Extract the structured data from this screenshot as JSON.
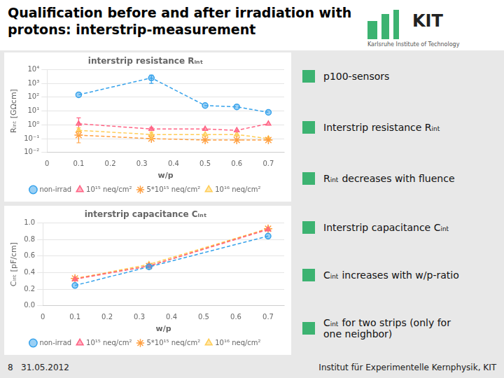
{
  "title": "Qualification before and after irradiation with\nprotons: interstrip-measurement",
  "annotations": [
    "KIT",
    "Karlsruhe Institute of Technology",
    "8   31.05.2012",
    "Institut für Experimentelle Kernphysik, KIT"
  ],
  "chart_data": [
    {
      "type": "line",
      "title": "interstrip resistance Rᵢₙₜ",
      "xlabel": "w/p",
      "ylabel": "Rᵢₙₜ [GΩcm]",
      "log": "y",
      "grid": "y",
      "legend": "bottom",
      "x": [
        0.1,
        0.33,
        0.5,
        0.6,
        0.7
      ],
      "xlim": [
        0,
        0.75
      ],
      "xticks": [
        0,
        0.1,
        0.2,
        0.3,
        0.4,
        0.5,
        0.6,
        0.7
      ],
      "ylim": [
        0.01,
        10000
      ],
      "yticks": [
        {
          "value": 0.01,
          "label": "10⁻²"
        },
        {
          "value": 0.1,
          "label": "10⁻¹"
        },
        {
          "value": 1,
          "label": "10⁰"
        },
        {
          "value": 10,
          "label": "10¹"
        },
        {
          "value": 100,
          "label": "10²"
        },
        {
          "value": 1000,
          "label": "10³"
        },
        {
          "value": 10000,
          "label": "10⁴"
        }
      ],
      "series": [
        {
          "name": "non-irrad",
          "marker": "circle",
          "line_style": "dashed",
          "values": [
            150,
            2500,
            25,
            20,
            8
          ],
          "yerr_lo": [
            0,
            1500,
            0,
            0,
            0
          ],
          "yerr_hi": [
            0,
            1500,
            0,
            0,
            0
          ]
        },
        {
          "name": "10¹⁵ neq/cm²",
          "marker": "triangle",
          "line_style": "dashed",
          "values": [
            1.2,
            0.5,
            0.5,
            0.4,
            1.2
          ],
          "yerr_lo": [
            1.0,
            0,
            0,
            0,
            0
          ],
          "yerr_hi": [
            2.0,
            0.15,
            0,
            0,
            0
          ]
        },
        {
          "name": "5*10¹⁵ neq/cm²",
          "marker": "star",
          "line_style": "dashed",
          "values": [
            0.18,
            0.1,
            0.08,
            0.08,
            0.08
          ],
          "yerr_lo": [
            0.13,
            0,
            0,
            0,
            0
          ],
          "yerr_hi": [
            0.13,
            0,
            0,
            0,
            0
          ]
        },
        {
          "name": "10¹⁶ neq/cm²",
          "marker": "triangle",
          "line_style": "dashed",
          "values": [
            0.4,
            0.2,
            0.2,
            0.2,
            0.1
          ],
          "yerr_lo": [
            0.2,
            0.1,
            0,
            0,
            0
          ],
          "yerr_hi": [
            0.2,
            0.1,
            0,
            0,
            0
          ]
        }
      ],
      "annotations": [
        "p100-sensors",
        "Interstrip resistance Rᵢₙₜ",
        "Rᵢₙₜ decreases with fluence"
      ]
    },
    {
      "type": "line",
      "title": "interstrip capacitance Cᵢₙₜ",
      "xlabel": "w/p",
      "ylabel": "Cᵢₙₜ [pF/cm]",
      "grid": "y",
      "legend": "bottom",
      "x": [
        0.1,
        0.33,
        0.7
      ],
      "xlim": [
        0,
        0.75
      ],
      "xticks": [
        0,
        0.1,
        0.2,
        0.3,
        0.4,
        0.5,
        0.6,
        0.7
      ],
      "ylim": [
        0.0,
        1.0
      ],
      "yticks": [
        {
          "value": 0,
          "label": "0.0"
        },
        0.2,
        0.4,
        0.6,
        0.8,
        {
          "value": 1,
          "label": "1.0"
        }
      ],
      "series": [
        {
          "name": "non-irrad",
          "marker": "circle",
          "line_style": "dashed",
          "values": [
            0.245,
            0.47,
            0.84
          ]
        },
        {
          "name": "10¹⁵ neq/cm²",
          "marker": "triangle",
          "line_style": "dashed",
          "values": [
            0.32,
            0.48,
            0.92
          ]
        },
        {
          "name": "5*10¹⁵ neq/cm²",
          "marker": "star",
          "line_style": "dashed",
          "values": [
            0.33,
            0.48,
            0.93
          ]
        },
        {
          "name": "10¹⁶ neq/cm²",
          "marker": "triangle",
          "line_style": "dashed",
          "values": [
            0.325,
            0.5,
            0.93
          ]
        }
      ],
      "annotations": [
        "Interstrip capacitance Cᵢₙₜ",
        "Cᵢₙₜ increases with w/p-ratio",
        "Cᵢₙₜ for two strips (only for\none neighbor)"
      ]
    }
  ]
}
